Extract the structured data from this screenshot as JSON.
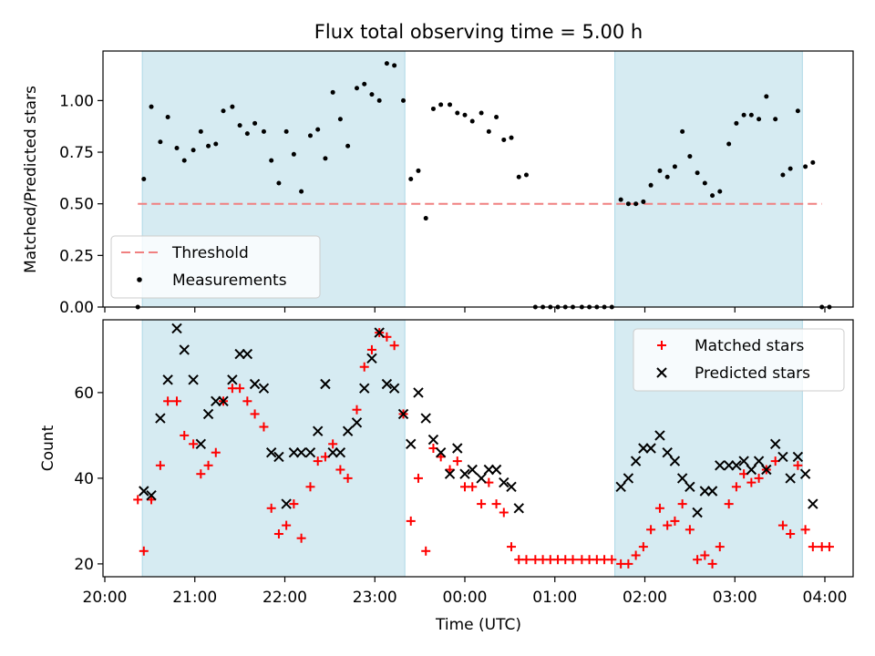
{
  "title": "Flux total observing time = 5.00 h",
  "xlabel": "Time (UTC)",
  "x_tick_labels": [
    "20:00",
    "21:00",
    "22:00",
    "23:00",
    "00:00",
    "01:00",
    "02:00",
    "03:00",
    "04:00"
  ],
  "colors": {
    "band": "#add8e6",
    "threshold": "#f08080",
    "measurement": "#000000",
    "matched": "#ff0000",
    "predicted": "#000000"
  },
  "chart_data": [
    {
      "type": "scatter",
      "ylabel": "Matched/Predicted stars",
      "ylim": [
        0,
        1.24
      ],
      "y_ticks": [
        0,
        0.25,
        0.5,
        0.75,
        1.0
      ],
      "y_tick_labels": [
        "0.00",
        "0.25",
        "0.50",
        "0.75",
        "1.00"
      ],
      "xlim": [
        "20:00",
        "04:00"
      ],
      "legend_position": "lower-left",
      "highlight_bands": [
        {
          "start": "20:25",
          "end": "23:20"
        },
        {
          "start": "01:40",
          "end": "03:45"
        }
      ],
      "threshold": {
        "name": "Threshold",
        "value": 0.5,
        "x_range": [
          "20:22",
          "03:58"
        ]
      },
      "series": [
        {
          "name": "Measurements",
          "points": [
            [
              "20:22",
              0.0
            ],
            [
              "20:26",
              0.62
            ],
            [
              "20:31",
              0.97
            ],
            [
              "20:37",
              0.8
            ],
            [
              "20:42",
              0.92
            ],
            [
              "20:48",
              0.77
            ],
            [
              "20:53",
              0.71
            ],
            [
              "20:59",
              0.76
            ],
            [
              "21:04",
              0.85
            ],
            [
              "21:09",
              0.78
            ],
            [
              "21:14",
              0.79
            ],
            [
              "21:19",
              0.95
            ],
            [
              "21:25",
              0.97
            ],
            [
              "21:30",
              0.88
            ],
            [
              "21:35",
              0.84
            ],
            [
              "21:40",
              0.89
            ],
            [
              "21:46",
              0.85
            ],
            [
              "21:51",
              0.71
            ],
            [
              "21:56",
              0.6
            ],
            [
              "22:01",
              0.85
            ],
            [
              "22:06",
              0.74
            ],
            [
              "22:11",
              0.56
            ],
            [
              "22:17",
              0.83
            ],
            [
              "22:22",
              0.86
            ],
            [
              "22:27",
              0.72
            ],
            [
              "22:32",
              1.04
            ],
            [
              "22:37",
              0.91
            ],
            [
              "22:42",
              0.78
            ],
            [
              "22:48",
              1.06
            ],
            [
              "22:53",
              1.08
            ],
            [
              "22:58",
              1.03
            ],
            [
              "23:03",
              1.0
            ],
            [
              "23:08",
              1.18
            ],
            [
              "23:13",
              1.17
            ],
            [
              "23:19",
              1.0
            ],
            [
              "23:24",
              0.62
            ],
            [
              "23:29",
              0.66
            ],
            [
              "23:34",
              0.43
            ],
            [
              "23:39",
              0.96
            ],
            [
              "23:44",
              0.98
            ],
            [
              "23:50",
              0.98
            ],
            [
              "23:55",
              0.94
            ],
            [
              "00:00",
              0.93
            ],
            [
              "00:05",
              0.9
            ],
            [
              "00:11",
              0.94
            ],
            [
              "00:16",
              0.85
            ],
            [
              "00:21",
              0.92
            ],
            [
              "00:26",
              0.81
            ],
            [
              "00:31",
              0.82
            ],
            [
              "00:36",
              0.63
            ],
            [
              "00:41",
              0.64
            ],
            [
              "00:47",
              0.0
            ],
            [
              "00:52",
              0.0
            ],
            [
              "00:57",
              0.0
            ],
            [
              "01:02",
              0.0
            ],
            [
              "01:07",
              0.0
            ],
            [
              "01:12",
              0.0
            ],
            [
              "01:18",
              0.0
            ],
            [
              "01:23",
              0.0
            ],
            [
              "01:28",
              0.0
            ],
            [
              "01:33",
              0.0
            ],
            [
              "01:38",
              0.0
            ],
            [
              "01:44",
              0.52
            ],
            [
              "01:49",
              0.5
            ],
            [
              "01:54",
              0.5
            ],
            [
              "01:59",
              0.51
            ],
            [
              "02:04",
              0.59
            ],
            [
              "02:10",
              0.66
            ],
            [
              "02:15",
              0.63
            ],
            [
              "02:20",
              0.68
            ],
            [
              "02:25",
              0.85
            ],
            [
              "02:30",
              0.73
            ],
            [
              "02:35",
              0.65
            ],
            [
              "02:40",
              0.6
            ],
            [
              "02:45",
              0.54
            ],
            [
              "02:50",
              0.56
            ],
            [
              "02:56",
              0.79
            ],
            [
              "03:01",
              0.89
            ],
            [
              "03:06",
              0.93
            ],
            [
              "03:11",
              0.93
            ],
            [
              "03:16",
              0.91
            ],
            [
              "03:21",
              1.02
            ],
            [
              "03:27",
              0.91
            ],
            [
              "03:32",
              0.64
            ],
            [
              "03:37",
              0.67
            ],
            [
              "03:42",
              0.95
            ],
            [
              "03:47",
              0.68
            ],
            [
              "03:52",
              0.7
            ],
            [
              "03:58",
              0.0
            ],
            [
              "04:03",
              0.0
            ]
          ]
        }
      ]
    },
    {
      "type": "scatter",
      "ylabel": "Count",
      "ylim": [
        17,
        77
      ],
      "y_ticks": [
        20,
        40,
        60
      ],
      "y_tick_labels": [
        "20",
        "40",
        "60"
      ],
      "xlim": [
        "20:00",
        "04:00"
      ],
      "legend_position": "upper-right",
      "highlight_bands": [
        {
          "start": "20:25",
          "end": "23:20"
        },
        {
          "start": "01:40",
          "end": "03:45"
        }
      ],
      "series": [
        {
          "name": "Matched stars",
          "marker": "+",
          "points": [
            [
              "20:22",
              35
            ],
            [
              "20:26",
              23
            ],
            [
              "20:31",
              35
            ],
            [
              "20:37",
              43
            ],
            [
              "20:42",
              58
            ],
            [
              "20:48",
              58
            ],
            [
              "20:53",
              50
            ],
            [
              "20:59",
              48
            ],
            [
              "21:04",
              41
            ],
            [
              "21:09",
              43
            ],
            [
              "21:14",
              46
            ],
            [
              "21:19",
              58
            ],
            [
              "21:25",
              61
            ],
            [
              "21:30",
              61
            ],
            [
              "21:35",
              58
            ],
            [
              "21:40",
              55
            ],
            [
              "21:46",
              52
            ],
            [
              "21:51",
              33
            ],
            [
              "21:56",
              27
            ],
            [
              "22:01",
              29
            ],
            [
              "22:06",
              34
            ],
            [
              "22:11",
              26
            ],
            [
              "22:17",
              38
            ],
            [
              "22:22",
              44
            ],
            [
              "22:27",
              45
            ],
            [
              "22:32",
              48
            ],
            [
              "22:37",
              42
            ],
            [
              "22:42",
              40
            ],
            [
              "22:48",
              56
            ],
            [
              "22:53",
              66
            ],
            [
              "22:58",
              70
            ],
            [
              "23:03",
              74
            ],
            [
              "23:08",
              73
            ],
            [
              "23:13",
              71
            ],
            [
              "23:19",
              55
            ],
            [
              "23:24",
              30
            ],
            [
              "23:29",
              40
            ],
            [
              "23:34",
              23
            ],
            [
              "23:39",
              47
            ],
            [
              "23:44",
              45
            ],
            [
              "23:50",
              42
            ],
            [
              "23:55",
              44
            ],
            [
              "00:00",
              38
            ],
            [
              "00:05",
              38
            ],
            [
              "00:11",
              34
            ],
            [
              "00:16",
              39
            ],
            [
              "00:21",
              34
            ],
            [
              "00:26",
              32
            ],
            [
              "00:31",
              24
            ],
            [
              "00:36",
              21
            ],
            [
              "00:41",
              21
            ],
            [
              "00:47",
              21
            ],
            [
              "00:52",
              21
            ],
            [
              "00:57",
              21
            ],
            [
              "01:02",
              21
            ],
            [
              "01:07",
              21
            ],
            [
              "01:12",
              21
            ],
            [
              "01:18",
              21
            ],
            [
              "01:23",
              21
            ],
            [
              "01:28",
              21
            ],
            [
              "01:33",
              21
            ],
            [
              "01:38",
              21
            ],
            [
              "01:44",
              20
            ],
            [
              "01:49",
              20
            ],
            [
              "01:54",
              22
            ],
            [
              "01:59",
              24
            ],
            [
              "02:04",
              28
            ],
            [
              "02:10",
              33
            ],
            [
              "02:15",
              29
            ],
            [
              "02:20",
              30
            ],
            [
              "02:25",
              34
            ],
            [
              "02:30",
              28
            ],
            [
              "02:35",
              21
            ],
            [
              "02:40",
              22
            ],
            [
              "02:45",
              20
            ],
            [
              "02:50",
              24
            ],
            [
              "02:56",
              34
            ],
            [
              "03:01",
              38
            ],
            [
              "03:06",
              41
            ],
            [
              "03:11",
              39
            ],
            [
              "03:16",
              40
            ],
            [
              "03:21",
              42
            ],
            [
              "03:27",
              44
            ],
            [
              "03:32",
              29
            ],
            [
              "03:37",
              27
            ],
            [
              "03:42",
              43
            ],
            [
              "03:47",
              28
            ],
            [
              "03:52",
              24
            ],
            [
              "03:58",
              24
            ],
            [
              "04:03",
              24
            ]
          ]
        },
        {
          "name": "Predicted stars",
          "marker": "x",
          "points": [
            [
              "20:26",
              37
            ],
            [
              "20:31",
              36
            ],
            [
              "20:37",
              54
            ],
            [
              "20:42",
              63
            ],
            [
              "20:48",
              75
            ],
            [
              "20:53",
              70
            ],
            [
              "20:59",
              63
            ],
            [
              "21:04",
              48
            ],
            [
              "21:09",
              55
            ],
            [
              "21:14",
              58
            ],
            [
              "21:19",
              58
            ],
            [
              "21:25",
              63
            ],
            [
              "21:30",
              69
            ],
            [
              "21:35",
              69
            ],
            [
              "21:40",
              62
            ],
            [
              "21:46",
              61
            ],
            [
              "21:51",
              46
            ],
            [
              "21:56",
              45
            ],
            [
              "22:01",
              34
            ],
            [
              "22:06",
              46
            ],
            [
              "22:11",
              46
            ],
            [
              "22:17",
              46
            ],
            [
              "22:22",
              51
            ],
            [
              "22:27",
              62
            ],
            [
              "22:32",
              46
            ],
            [
              "22:37",
              46
            ],
            [
              "22:42",
              51
            ],
            [
              "22:48",
              53
            ],
            [
              "22:53",
              61
            ],
            [
              "22:58",
              68
            ],
            [
              "23:03",
              74
            ],
            [
              "23:08",
              62
            ],
            [
              "23:13",
              61
            ],
            [
              "23:19",
              55
            ],
            [
              "23:24",
              48
            ],
            [
              "23:29",
              60
            ],
            [
              "23:34",
              54
            ],
            [
              "23:39",
              49
            ],
            [
              "23:44",
              46
            ],
            [
              "23:50",
              41
            ],
            [
              "23:55",
              47
            ],
            [
              "00:00",
              41
            ],
            [
              "00:05",
              42
            ],
            [
              "00:11",
              40
            ],
            [
              "00:16",
              42
            ],
            [
              "00:21",
              42
            ],
            [
              "00:26",
              39
            ],
            [
              "00:31",
              38
            ],
            [
              "00:36",
              33
            ],
            [
              "01:44",
              38
            ],
            [
              "01:49",
              40
            ],
            [
              "01:54",
              44
            ],
            [
              "01:59",
              47
            ],
            [
              "02:04",
              47
            ],
            [
              "02:10",
              50
            ],
            [
              "02:15",
              46
            ],
            [
              "02:20",
              44
            ],
            [
              "02:25",
              40
            ],
            [
              "02:30",
              38
            ],
            [
              "02:35",
              32
            ],
            [
              "02:40",
              37
            ],
            [
              "02:45",
              37
            ],
            [
              "02:50",
              43
            ],
            [
              "02:56",
              43
            ],
            [
              "03:01",
              43
            ],
            [
              "03:06",
              44
            ],
            [
              "03:11",
              42
            ],
            [
              "03:16",
              44
            ],
            [
              "03:21",
              42
            ],
            [
              "03:27",
              48
            ],
            [
              "03:32",
              45
            ],
            [
              "03:37",
              40
            ],
            [
              "03:42",
              45
            ],
            [
              "03:47",
              41
            ],
            [
              "03:52",
              34
            ]
          ]
        }
      ]
    }
  ]
}
